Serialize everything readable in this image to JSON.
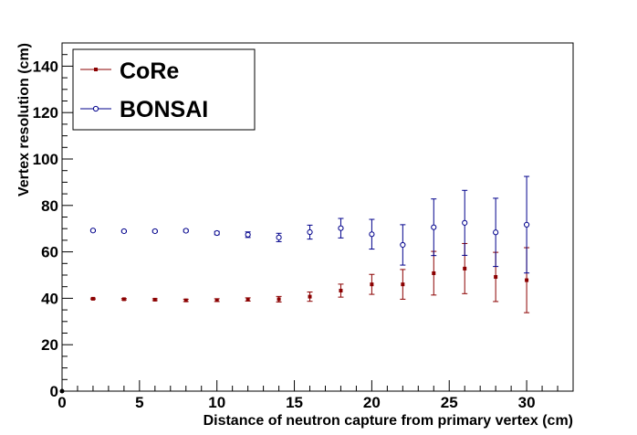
{
  "chart_data": {
    "type": "scatter",
    "xlabel": "Distance of neutron capture from primary vertex (cm)",
    "ylabel": "Vertex resolution (cm)",
    "xlim": [
      0,
      33
    ],
    "ylim": [
      0,
      150
    ],
    "x_ticks": [
      0,
      5,
      10,
      15,
      20,
      25,
      30
    ],
    "y_ticks": [
      0,
      20,
      40,
      60,
      80,
      100,
      120,
      140
    ],
    "grid": false,
    "legend_position": "top-left",
    "series": [
      {
        "name": "CoRe",
        "color": "#8b0000",
        "marker": "filled-square",
        "points": [
          {
            "x": 2,
            "y": 39.8,
            "err": 0.3
          },
          {
            "x": 4,
            "y": 39.6,
            "err": 0.3
          },
          {
            "x": 6,
            "y": 39.4,
            "err": 0.4
          },
          {
            "x": 8,
            "y": 39.1,
            "err": 0.5
          },
          {
            "x": 10,
            "y": 39.2,
            "err": 0.6
          },
          {
            "x": 12,
            "y": 39.5,
            "err": 0.7
          },
          {
            "x": 14,
            "y": 39.6,
            "err": 1.2
          },
          {
            "x": 16,
            "y": 40.7,
            "err": 2.0
          },
          {
            "x": 18,
            "y": 43.3,
            "err": 2.8
          },
          {
            "x": 20,
            "y": 46.0,
            "err": 4.3
          },
          {
            "x": 22,
            "y": 46.0,
            "err": 6.4
          },
          {
            "x": 24,
            "y": 50.8,
            "err": 9.4
          },
          {
            "x": 26,
            "y": 52.8,
            "err": 10.8
          },
          {
            "x": 28,
            "y": 49.2,
            "err": 10.6
          },
          {
            "x": 30,
            "y": 47.8,
            "err": 14.0
          }
        ]
      },
      {
        "name": "BONSAI",
        "color": "#00008b",
        "marker": "open-circle",
        "points": [
          {
            "x": 2,
            "y": 69.2,
            "err": 0.3
          },
          {
            "x": 4,
            "y": 68.9,
            "err": 0.3
          },
          {
            "x": 6,
            "y": 68.9,
            "err": 0.4
          },
          {
            "x": 8,
            "y": 69.1,
            "err": 0.5
          },
          {
            "x": 10,
            "y": 68.1,
            "err": 0.7
          },
          {
            "x": 12,
            "y": 67.4,
            "err": 1.2
          },
          {
            "x": 14,
            "y": 66.2,
            "err": 1.8
          },
          {
            "x": 16,
            "y": 68.5,
            "err": 3.0
          },
          {
            "x": 18,
            "y": 70.2,
            "err": 4.2
          },
          {
            "x": 20,
            "y": 67.6,
            "err": 6.4
          },
          {
            "x": 22,
            "y": 63.0,
            "err": 8.7
          },
          {
            "x": 24,
            "y": 70.6,
            "err": 12.2
          },
          {
            "x": 26,
            "y": 72.5,
            "err": 14.0
          },
          {
            "x": 28,
            "y": 68.4,
            "err": 14.7
          },
          {
            "x": 30,
            "y": 71.7,
            "err": 20.8
          }
        ]
      }
    ]
  }
}
